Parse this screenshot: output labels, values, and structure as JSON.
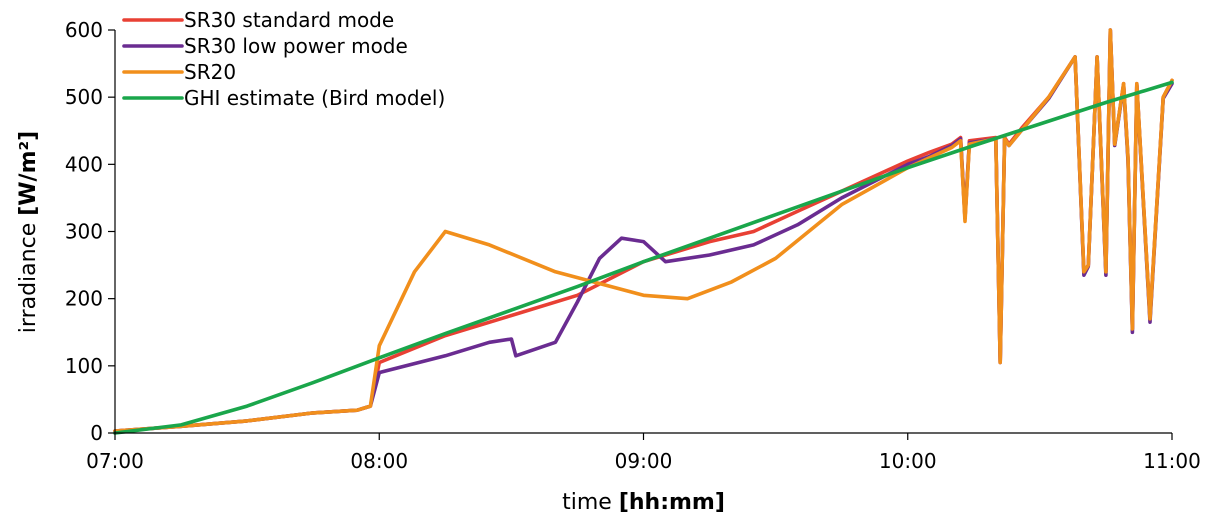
{
  "chart_data": {
    "type": "line",
    "xlabel": "time",
    "xlabel_unit": "[hh:mm]",
    "ylabel": "irradiance",
    "ylabel_unit": "[W/m²]",
    "xlim": [
      "07:00",
      "11:00"
    ],
    "ylim": [
      0,
      600
    ],
    "x_ticks": [
      "07:00",
      "08:00",
      "09:00",
      "10:00",
      "11:00"
    ],
    "y_ticks": [
      0,
      100,
      200,
      300,
      400,
      500,
      600
    ],
    "grid": false,
    "legend_position": "top-left",
    "series": [
      {
        "name": "SR30 standard mode",
        "color": "#e84034",
        "x": [
          "07:00",
          "07:15",
          "07:30",
          "07:45",
          "07:55",
          "07:58",
          "08:00",
          "08:15",
          "08:30",
          "08:45",
          "09:00",
          "09:15",
          "09:25",
          "09:35",
          "09:45",
          "10:00",
          "10:05",
          "10:10",
          "10:12",
          "10:13",
          "10:14",
          "10:20",
          "10:21",
          "10:22",
          "10:23",
          "10:26",
          "10:32",
          "10:38",
          "10:40",
          "10:41",
          "10:43",
          "10:45",
          "10:46",
          "10:47",
          "10:49",
          "10:50",
          "10:51",
          "10:52",
          "10:55",
          "10:58",
          "11:00"
        ],
        "y": [
          3,
          10,
          18,
          30,
          34,
          40,
          105,
          145,
          175,
          205,
          255,
          285,
          300,
          330,
          360,
          405,
          418,
          430,
          440,
          320,
          435,
          440,
          105,
          440,
          430,
          455,
          500,
          560,
          240,
          250,
          560,
          240,
          600,
          430,
          520,
          410,
          155,
          520,
          170,
          500,
          525
        ]
      },
      {
        "name": "SR30 low power mode",
        "color": "#6a2c91",
        "x": [
          "07:00",
          "07:15",
          "07:30",
          "07:45",
          "07:55",
          "07:58",
          "08:00",
          "08:15",
          "08:25",
          "08:30",
          "08:31",
          "08:40",
          "08:45",
          "08:50",
          "08:55",
          "09:00",
          "09:05",
          "09:15",
          "09:25",
          "09:35",
          "09:45",
          "10:00",
          "10:05",
          "10:10",
          "10:12",
          "10:13",
          "10:14",
          "10:20",
          "10:21",
          "10:22",
          "10:23",
          "10:26",
          "10:32",
          "10:38",
          "10:40",
          "10:41",
          "10:43",
          "10:45",
          "10:46",
          "10:47",
          "10:49",
          "10:50",
          "10:51",
          "10:52",
          "10:55",
          "10:58",
          "11:00"
        ],
        "y": [
          3,
          10,
          18,
          30,
          34,
          40,
          90,
          115,
          135,
          140,
          115,
          135,
          195,
          260,
          290,
          285,
          255,
          265,
          280,
          310,
          350,
          400,
          412,
          428,
          438,
          320,
          432,
          438,
          105,
          438,
          428,
          452,
          498,
          560,
          235,
          248,
          560,
          235,
          600,
          428,
          518,
          405,
          150,
          518,
          165,
          498,
          520
        ]
      },
      {
        "name": "SR20",
        "color": "#f18f1c",
        "x": [
          "07:00",
          "07:15",
          "07:30",
          "07:45",
          "07:55",
          "07:58",
          "08:00",
          "08:08",
          "08:15",
          "08:25",
          "08:40",
          "09:00",
          "09:10",
          "09:20",
          "09:30",
          "09:45",
          "10:00",
          "10:05",
          "10:10",
          "10:12",
          "10:13",
          "10:14",
          "10:20",
          "10:21",
          "10:22",
          "10:23",
          "10:26",
          "10:32",
          "10:38",
          "10:40",
          "10:41",
          "10:43",
          "10:45",
          "10:46",
          "10:47",
          "10:49",
          "10:50",
          "10:51",
          "10:52",
          "10:55",
          "10:58",
          "11:00"
        ],
        "y": [
          3,
          10,
          18,
          30,
          34,
          40,
          130,
          240,
          300,
          280,
          240,
          205,
          200,
          225,
          260,
          340,
          395,
          410,
          425,
          435,
          315,
          430,
          438,
          105,
          438,
          428,
          452,
          500,
          560,
          240,
          250,
          560,
          240,
          600,
          430,
          520,
          410,
          155,
          520,
          170,
          500,
          525
        ]
      },
      {
        "name": "GHI estimate (Bird model)",
        "color": "#1aa64b",
        "x": [
          "07:00",
          "07:15",
          "07:30",
          "07:45",
          "08:00",
          "08:15",
          "08:30",
          "08:45",
          "09:00",
          "09:15",
          "09:30",
          "09:45",
          "10:00",
          "10:15",
          "10:30",
          "10:45",
          "11:00"
        ],
        "y": [
          0,
          12,
          40,
          75,
          112,
          148,
          183,
          218,
          255,
          290,
          325,
          360,
          395,
          428,
          460,
          492,
          522
        ]
      }
    ]
  }
}
